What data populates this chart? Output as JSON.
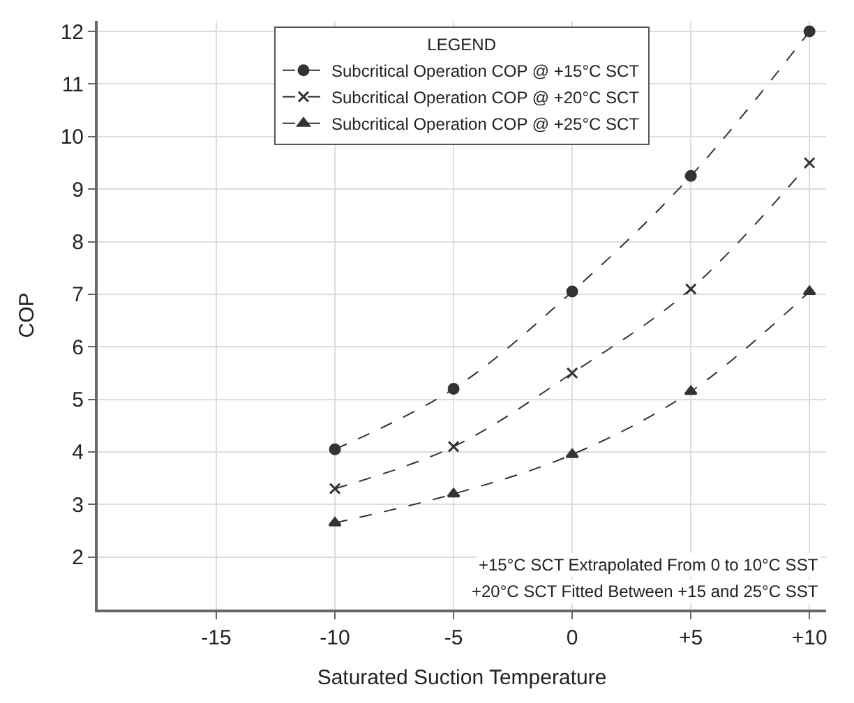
{
  "chart_data": {
    "type": "line",
    "xlabel": "Saturated Suction Temperature",
    "ylabel": "COP",
    "legend_title": "LEGEND",
    "x": [
      -10,
      -5,
      0,
      5,
      10
    ],
    "series": [
      {
        "name": "Subcritical Operation COP @ +15°C SCT",
        "color": "#333333",
        "values": [
          4.05,
          5.2,
          7.05,
          9.25,
          12.0
        ],
        "marker": "circle",
        "line_style": "dashed"
      },
      {
        "name": "Subcritical Operation COP @ +20°C SCT",
        "color": "#333333",
        "values": [
          3.3,
          4.1,
          5.5,
          7.1,
          9.5
        ],
        "marker": "cross",
        "line_style": "dashed"
      },
      {
        "name": "Subcritical Operation COP @ +25°C SCT",
        "color": "#333333",
        "values": [
          2.65,
          3.2,
          3.95,
          5.15,
          7.05
        ],
        "marker": "triangle",
        "line_style": "dashed"
      }
    ],
    "xlim": [
      -20,
      10.7
    ],
    "xticks": [
      -15,
      -10,
      -5,
      0,
      {
        "value": 5,
        "label": "+5"
      },
      {
        "value": 10,
        "label": "+10"
      }
    ],
    "ylim": [
      1,
      12.2
    ],
    "yticks": [
      2,
      3,
      4,
      5,
      6,
      7,
      8,
      9,
      10,
      11,
      12
    ],
    "grid": true,
    "legend": "top",
    "annotations": [
      "+15°C SCT Extrapolated From 0 to 10°C SST",
      "+20°C SCT Fitted Between +15 and 25°C SST"
    ]
  }
}
